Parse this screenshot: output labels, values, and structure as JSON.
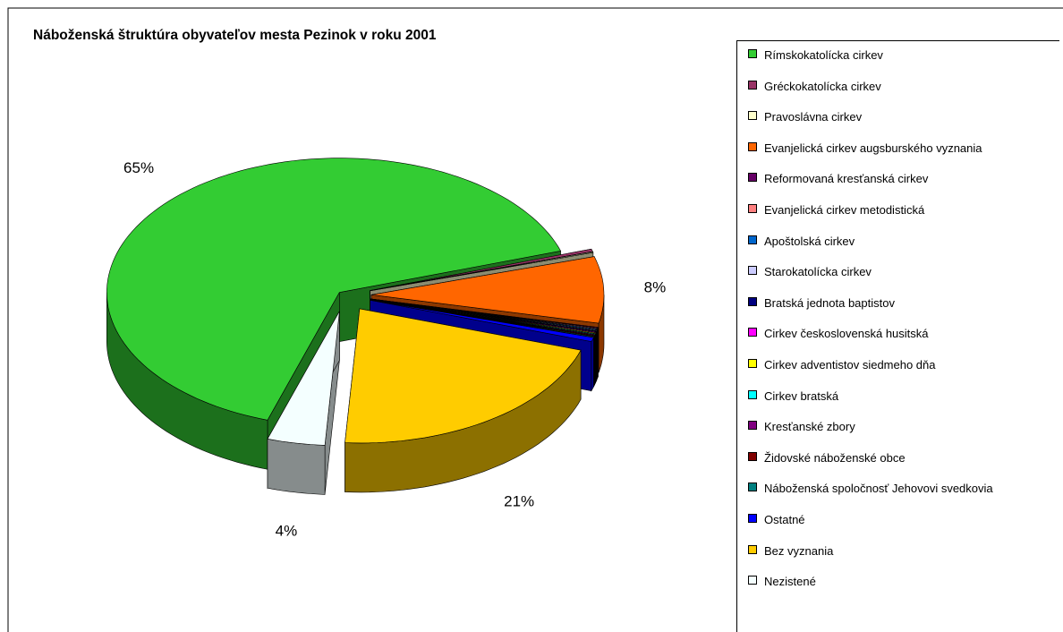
{
  "chart_data": {
    "type": "pie",
    "title": "Náboženská štruktúra obyvateľov mesta Pezinok v roku 2001",
    "categories": [
      "Rímskokatolícka cirkev",
      "Gréckokatolícka cirkev",
      "Pravoslávna cirkev",
      "Evanjelická cirkev augsburského vyznania",
      "Reformovaná kresťanská cirkev",
      "Evanjelická cirkev metodistická",
      "Apoštolská cirkev",
      "Starokatolícka cirkev",
      "Bratská jednota baptistov",
      "Cirkev československá husitská",
      "Cirkev adventistov siedmeho dňa",
      "Cirkev bratská",
      "Kresťanské zbory",
      "Židovské náboženské obce",
      "Náboženská spoločnosť Jehovovi svedkovia",
      "Ostatné",
      "Bez vyznania",
      "Nezistené"
    ],
    "values": [
      65,
      0.3,
      0.1,
      8,
      0.1,
      0.1,
      0.1,
      0.1,
      0.1,
      0.1,
      0.1,
      0.1,
      0.1,
      0.1,
      0.1,
      0.5,
      21,
      4
    ],
    "value_labels": [
      "65%",
      null,
      null,
      "8%",
      null,
      null,
      null,
      null,
      null,
      null,
      null,
      null,
      null,
      null,
      null,
      null,
      "21%",
      "4%"
    ],
    "colors": [
      "#33cc33",
      "#993366",
      "#ffffcc",
      "#ff6600",
      "#660066",
      "#ff8080",
      "#0066cc",
      "#ccccff",
      "#000080",
      "#ff00ff",
      "#ffff00",
      "#00ffff",
      "#800080",
      "#800000",
      "#008080",
      "#0000ff",
      "#ffcc00",
      "#f4ffff"
    ],
    "legend": "right"
  }
}
